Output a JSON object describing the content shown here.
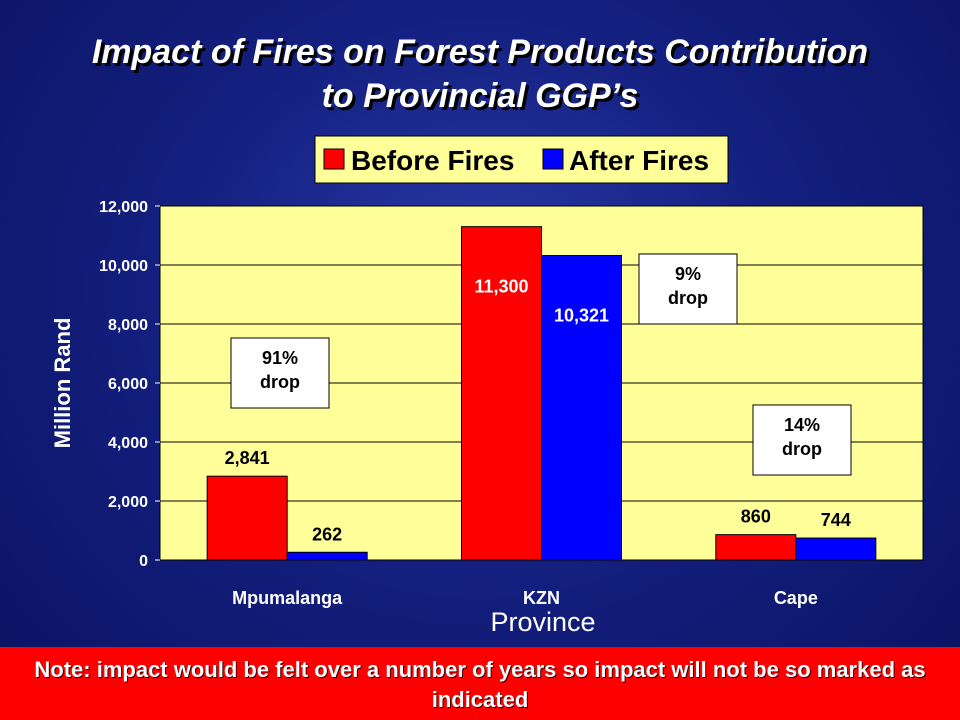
{
  "title_lines": [
    "Impact of Fires on Forest Products Contribution",
    "to Provincial GGP’s"
  ],
  "note": "Note: impact would be felt over a number of years so impact will not be so marked as indicated",
  "chart_data": {
    "type": "bar",
    "categories": [
      "Mpumalanga",
      "KZN",
      "Cape"
    ],
    "series": [
      {
        "name": "Before Fires",
        "values": [
          2841,
          11300,
          860
        ],
        "labels": [
          "2,841",
          "11,300",
          "860"
        ],
        "color": "#ff0000"
      },
      {
        "name": "After Fires",
        "values": [
          262,
          10321,
          744
        ],
        "labels": [
          "262",
          "10,321",
          "744"
        ],
        "color": "#0000ff"
      }
    ],
    "xlabel": "Province",
    "ylabel": "Million Rand",
    "ylim": [
      0,
      12000
    ],
    "yticks": [
      0,
      2000,
      4000,
      6000,
      8000,
      10000,
      12000
    ],
    "ytick_labels": [
      "0",
      "2,000",
      "4,000",
      "6,000",
      "8,000",
      "10,000",
      "12,000"
    ],
    "grid": true,
    "legend_position": "top-center",
    "plot_background": "#ffff99",
    "annotations": [
      {
        "lines": [
          "91%",
          "drop"
        ],
        "category": "Mpumalanga"
      },
      {
        "lines": [
          "9%",
          "drop"
        ],
        "category": "KZN"
      },
      {
        "lines": [
          "14%",
          "drop"
        ],
        "category": "Cape"
      }
    ]
  }
}
